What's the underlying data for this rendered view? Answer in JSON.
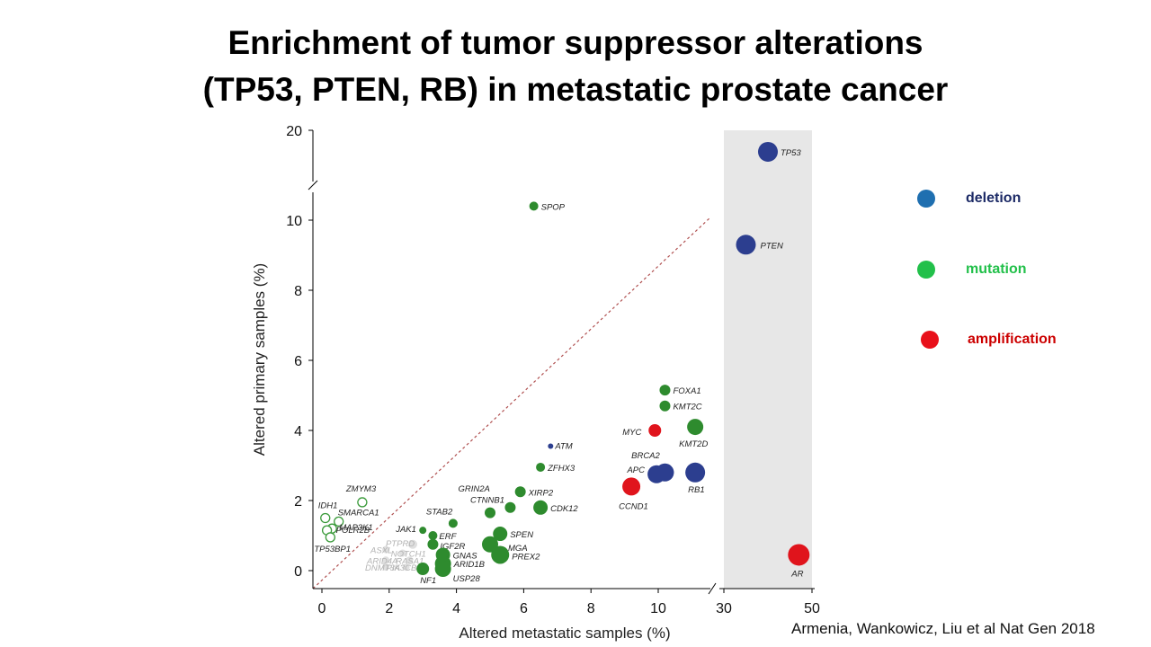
{
  "slide": {
    "title_line1": "Enrichment of tumor suppressor alterations",
    "title_line2": "(TP53, PTEN, RB) in metastatic prostate cancer",
    "citation": "Armenia, Wankowicz, Liu et al Nat Gen 2018"
  },
  "legend": [
    {
      "label": "deletion",
      "color": "#1f6fb0",
      "text_color": "#1c2a66"
    },
    {
      "label": "mutation",
      "color": "#22c04a",
      "text_color": "#22c04a"
    },
    {
      "label": "amplification",
      "color": "#e8101a",
      "text_color": "#cc0000"
    }
  ],
  "colors": {
    "deletion": "#2c3e8f",
    "mutation": "#2e8b2e",
    "amplification": "#e0141c",
    "open": "#3a9a3a",
    "faded": "#c4c4c4",
    "label": "#222222",
    "diagonal": "#b05050",
    "highlight_panel": "#e7e7e7"
  },
  "chart_data": {
    "type": "scatter",
    "xlabel": "Altered metastatic samples (%)",
    "ylabel": "Altered primary samples (%)",
    "x_axis_segments": [
      {
        "range": [
          0,
          11.5
        ],
        "ticks": [
          "0",
          "2",
          "4",
          "6",
          "8",
          "10"
        ]
      },
      {
        "range": [
          30,
          50
        ],
        "ticks": [
          "30",
          "50"
        ]
      }
    ],
    "y_axis_segments": [
      {
        "range": [
          0,
          10.5
        ],
        "ticks": [
          "0",
          "2",
          "4",
          "6",
          "8",
          "10"
        ]
      },
      {
        "range": [
          10.5,
          20
        ],
        "ticks": [
          "20"
        ]
      }
    ],
    "diagonal_reference": true,
    "points": [
      {
        "gene": "TP53",
        "x": 40,
        "y": 17.5,
        "type": "deletion"
      },
      {
        "gene": "PTEN",
        "x": 35,
        "y": 9.3,
        "type": "deletion"
      },
      {
        "gene": "RB1",
        "x": 11.1,
        "y": 2.8,
        "type": "deletion"
      },
      {
        "gene": "BRCA2",
        "x": 9.95,
        "y": 2.75,
        "type": "deletion"
      },
      {
        "gene": "APC",
        "x": 10.2,
        "y": 2.8,
        "type": "deletion"
      },
      {
        "gene": "ATM",
        "x": 6.8,
        "y": 3.55,
        "type": "deletion"
      },
      {
        "gene": "AR",
        "x": 47,
        "y": 0.45,
        "type": "amplification"
      },
      {
        "gene": "MYC",
        "x": 9.9,
        "y": 4.0,
        "type": "amplification"
      },
      {
        "gene": "CCND1",
        "x": 9.2,
        "y": 2.4,
        "type": "amplification"
      },
      {
        "gene": "SPOP",
        "x": 6.3,
        "y": 10.4,
        "type": "mutation"
      },
      {
        "gene": "FOXA1",
        "x": 10.2,
        "y": 5.15,
        "type": "mutation"
      },
      {
        "gene": "KMT2C",
        "x": 10.2,
        "y": 4.7,
        "type": "mutation"
      },
      {
        "gene": "KMT2D",
        "x": 11.1,
        "y": 4.1,
        "type": "mutation"
      },
      {
        "gene": "ZFHX3",
        "x": 6.5,
        "y": 2.95,
        "type": "mutation"
      },
      {
        "gene": "XIRP2",
        "x": 5.9,
        "y": 2.25,
        "type": "mutation"
      },
      {
        "gene": "CTNNB1",
        "x": 5.0,
        "y": 1.65,
        "type": "mutation"
      },
      {
        "gene": "CDK12",
        "x": 6.5,
        "y": 1.8,
        "type": "mutation"
      },
      {
        "gene": "STAB2",
        "x": 3.9,
        "y": 1.35,
        "type": "mutation"
      },
      {
        "gene": "GRIN2A",
        "x": 5.6,
        "y": 1.8,
        "type": "mutation"
      },
      {
        "gene": "JAK1",
        "x": 3.0,
        "y": 1.15,
        "type": "mutation"
      },
      {
        "gene": "ERF",
        "x": 3.3,
        "y": 1.0,
        "type": "mutation"
      },
      {
        "gene": "SPEN",
        "x": 5.3,
        "y": 1.05,
        "type": "mutation"
      },
      {
        "gene": "MGA",
        "x": 5.0,
        "y": 0.75,
        "type": "mutation"
      },
      {
        "gene": "IGF2R",
        "x": 3.3,
        "y": 0.75,
        "type": "mutation"
      },
      {
        "gene": "GNAS",
        "x": 3.6,
        "y": 0.45,
        "type": "mutation"
      },
      {
        "gene": "PREX2",
        "x": 5.3,
        "y": 0.45,
        "type": "mutation"
      },
      {
        "gene": "ARID1B",
        "x": 3.6,
        "y": 0.2,
        "type": "mutation"
      },
      {
        "gene": "USP28",
        "x": 3.6,
        "y": 0.05,
        "type": "mutation"
      },
      {
        "gene": "NF1",
        "x": 3.0,
        "y": 0.05,
        "type": "mutation"
      },
      {
        "gene": "ZMYM3",
        "x": 1.2,
        "y": 1.95,
        "type": "open"
      },
      {
        "gene": "IDH1",
        "x": 0.1,
        "y": 1.5,
        "type": "open"
      },
      {
        "gene": "SMARCA1",
        "x": 0.5,
        "y": 1.4,
        "type": "open"
      },
      {
        "gene": "MAP3K1",
        "x": 0.3,
        "y": 1.2,
        "type": "open"
      },
      {
        "gene": "POLR2B",
        "x": 0.15,
        "y": 1.15,
        "type": "open"
      },
      {
        "gene": "TP53BP1",
        "x": 0.25,
        "y": 0.95,
        "type": "open"
      },
      {
        "gene": "PTPRD",
        "x": 2.7,
        "y": 0.75,
        "type": "faded"
      },
      {
        "gene": "ASXL",
        "x": 1.9,
        "y": 0.6,
        "type": "faded"
      },
      {
        "gene": "NOTCH1",
        "x": 2.4,
        "y": 0.5,
        "type": "faded"
      },
      {
        "gene": "ARID4A",
        "x": 1.9,
        "y": 0.3,
        "type": "faded"
      },
      {
        "gene": "RASA1",
        "x": 2.6,
        "y": 0.3,
        "type": "faded"
      },
      {
        "gene": "DNMT3A",
        "x": 1.9,
        "y": 0.1,
        "type": "faded"
      },
      {
        "gene": "PIK3CB",
        "x": 2.5,
        "y": 0.1,
        "type": "faded"
      }
    ]
  }
}
